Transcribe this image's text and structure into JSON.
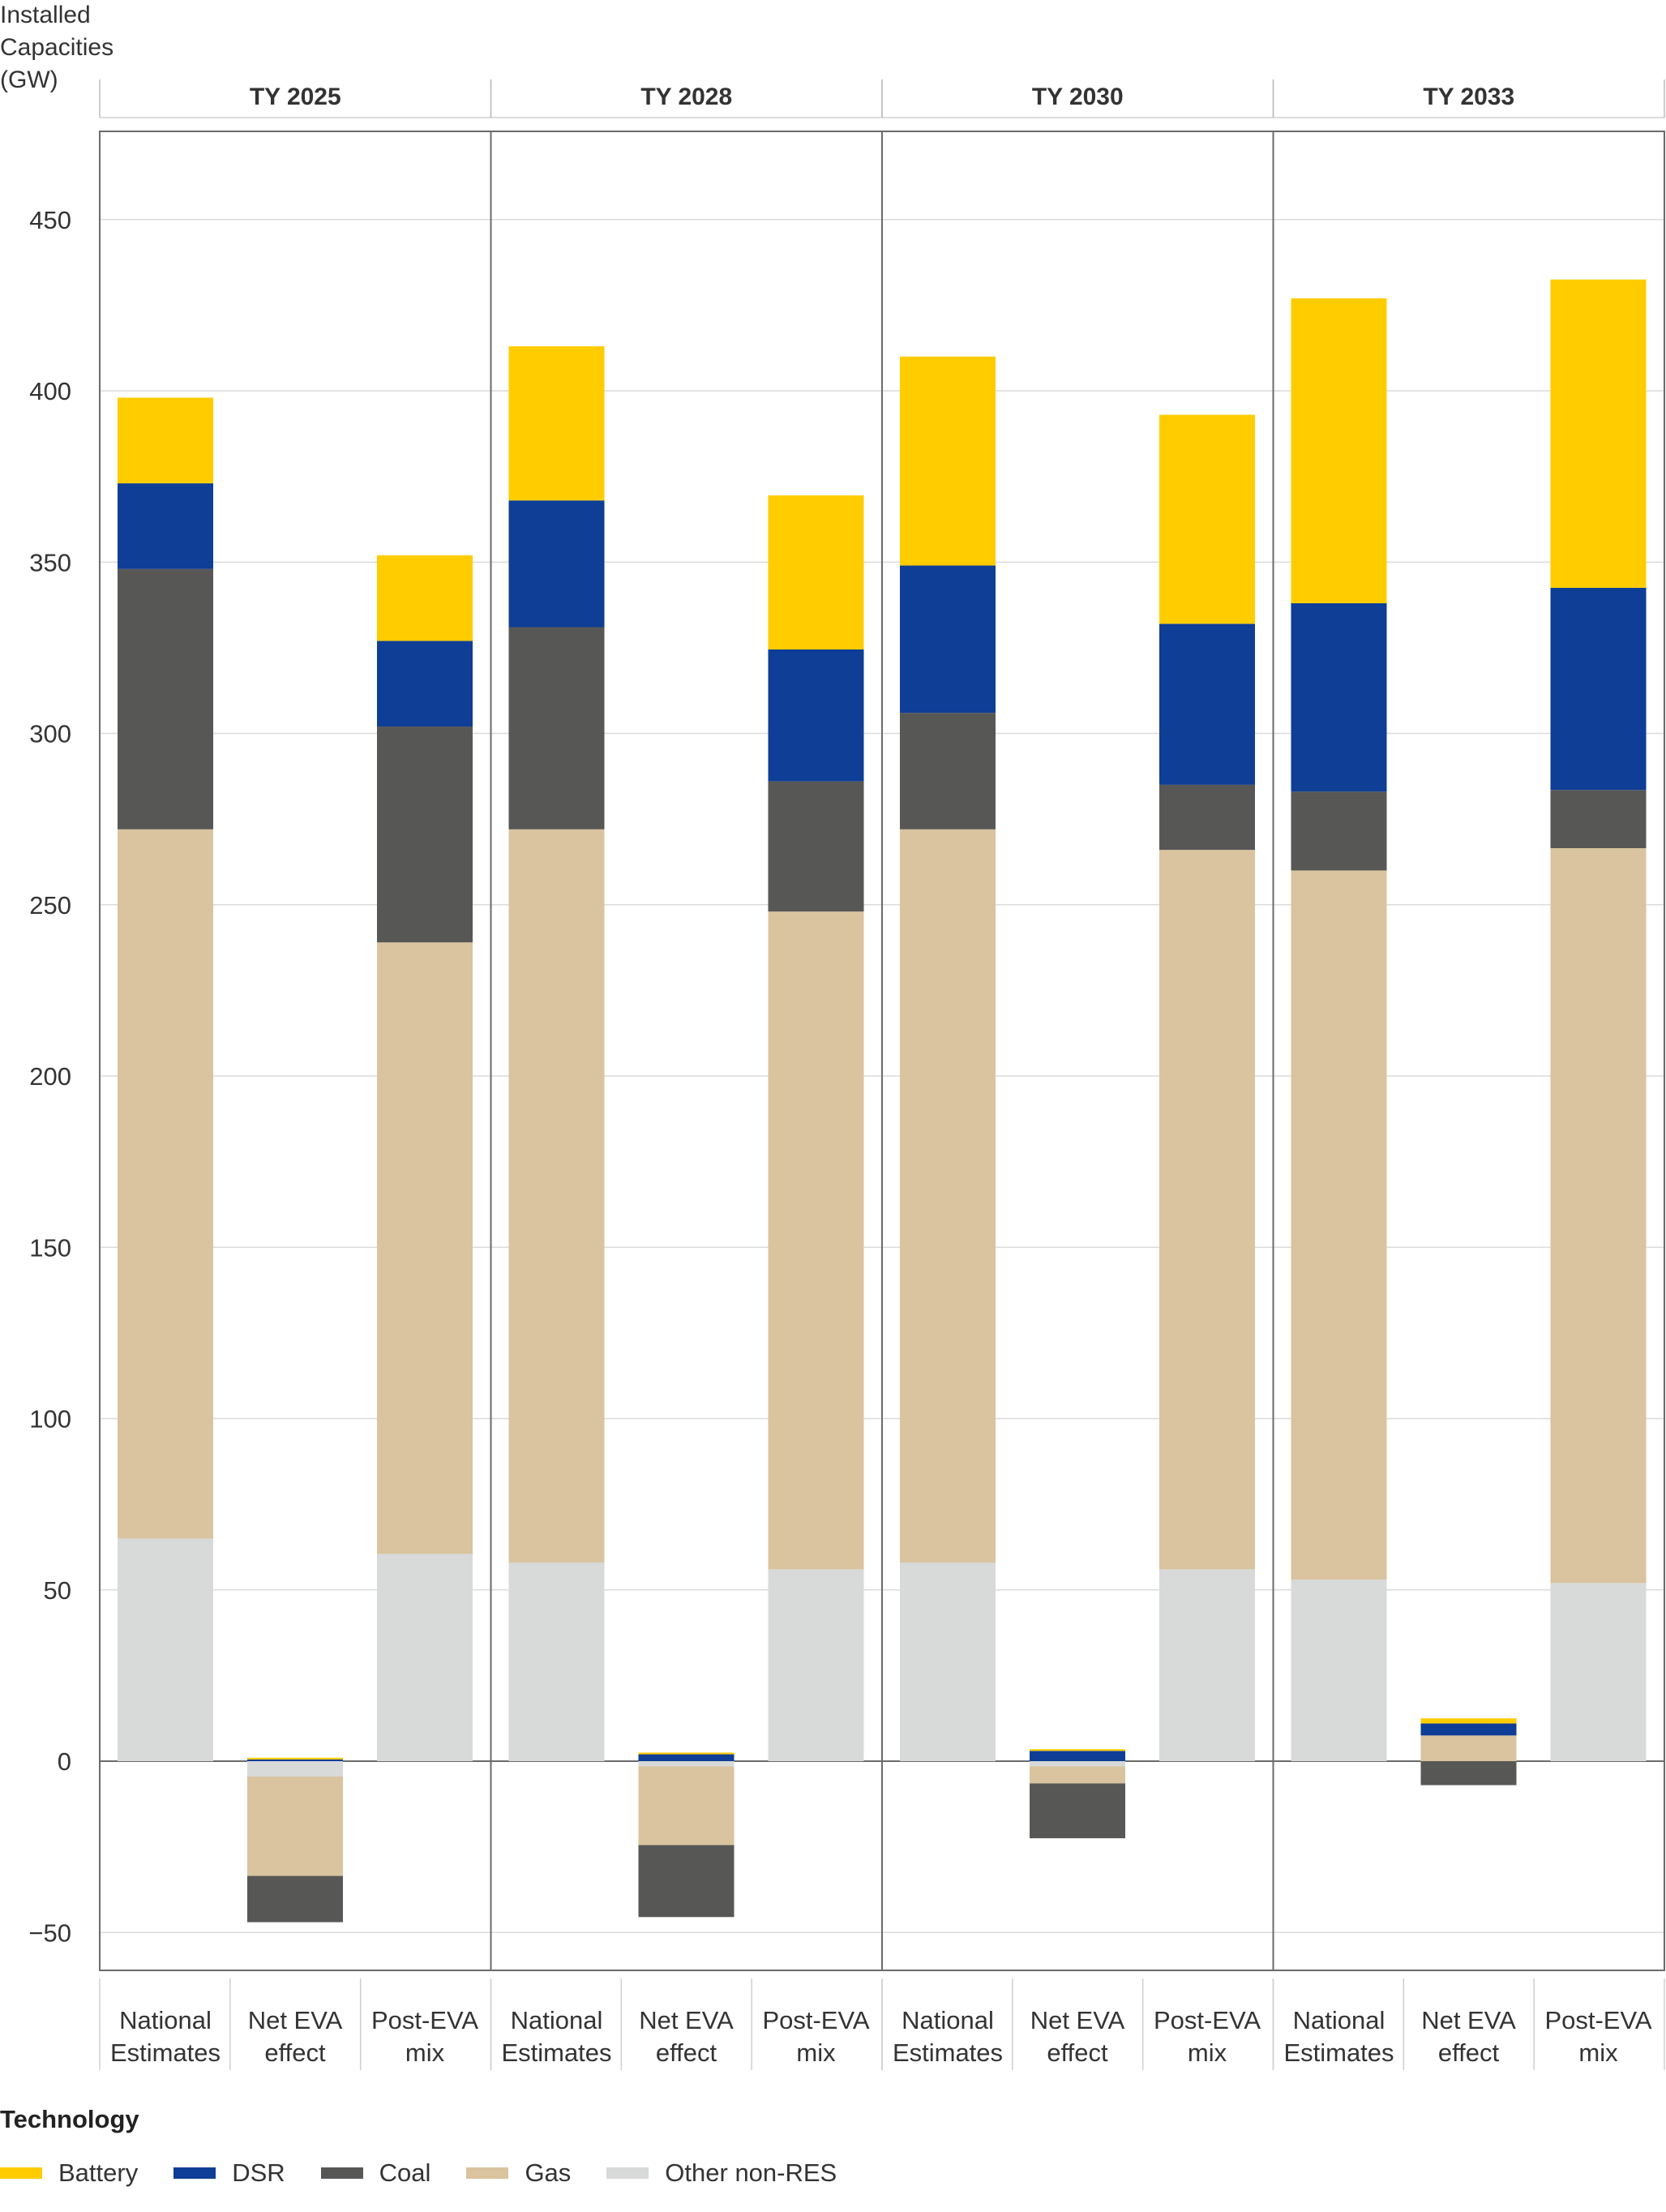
{
  "chart_data": {
    "type": "bar",
    "stacked": true,
    "ylabel": "Installed\nCapacities\n(GW)",
    "ylim": [
      -60,
      480
    ],
    "yticks": [
      -50,
      0,
      50,
      100,
      150,
      200,
      250,
      300,
      350,
      400,
      450
    ],
    "grid": true,
    "legend_title": "Technology",
    "legend_position": "bottom-left",
    "panels": [
      {
        "title": "TY 2025",
        "categories": [
          "National\nEstimates",
          "Net EVA\neffect",
          "Post-EVA\nmix"
        ],
        "series": [
          {
            "name": "Other non-RES",
            "values": [
              65,
              -4.5,
              60.5
            ]
          },
          {
            "name": "Gas",
            "values": [
              207,
              -29,
              178.5
            ]
          },
          {
            "name": "Coal",
            "values": [
              76,
              -13.5,
              63
            ]
          },
          {
            "name": "DSR",
            "values": [
              25,
              0.5,
              25
            ]
          },
          {
            "name": "Battery",
            "values": [
              25,
              0.5,
              25
            ]
          }
        ]
      },
      {
        "title": "TY 2028",
        "categories": [
          "National\nEstimates",
          "Net EVA\neffect",
          "Post-EVA\nmix"
        ],
        "series": [
          {
            "name": "Other non-RES",
            "values": [
              58,
              -1.5,
              56
            ]
          },
          {
            "name": "Gas",
            "values": [
              214,
              -23,
              192
            ]
          },
          {
            "name": "Coal",
            "values": [
              59,
              -21,
              38
            ]
          },
          {
            "name": "DSR",
            "values": [
              37,
              2,
              38.5
            ]
          },
          {
            "name": "Battery",
            "values": [
              45,
              0.5,
              45
            ]
          }
        ]
      },
      {
        "title": "TY 2030",
        "categories": [
          "National\nEstimates",
          "Net EVA\neffect",
          "Post-EVA\nmix"
        ],
        "series": [
          {
            "name": "Other non-RES",
            "values": [
              58,
              -1.5,
              56
            ]
          },
          {
            "name": "Gas",
            "values": [
              214,
              -5,
              210
            ]
          },
          {
            "name": "Coal",
            "values": [
              34,
              -16,
              19
            ]
          },
          {
            "name": "DSR",
            "values": [
              43,
              3,
              47
            ]
          },
          {
            "name": "Battery",
            "values": [
              61,
              0.5,
              61
            ]
          }
        ]
      },
      {
        "title": "TY 2033",
        "categories": [
          "National\nEstimates",
          "Net EVA\neffect",
          "Post-EVA\nmix"
        ],
        "series": [
          {
            "name": "Other non-RES",
            "values": [
              53,
              0,
              52
            ]
          },
          {
            "name": "Gas",
            "values": [
              207,
              7.5,
              214.5
            ]
          },
          {
            "name": "Coal",
            "values": [
              23,
              -7,
              17
            ]
          },
          {
            "name": "DSR",
            "values": [
              55,
              3.5,
              59
            ]
          },
          {
            "name": "Battery",
            "values": [
              89,
              1.5,
              90
            ]
          }
        ]
      }
    ]
  },
  "colors": {
    "Battery": "#FFCC00",
    "DSR": "#0E3E95",
    "Coal": "#575756",
    "Gas": "#D9C49F",
    "Other non-RES": "#D8D9D9"
  },
  "legend": {
    "title": "Technology",
    "items": [
      "Battery",
      "DSR",
      "Coal",
      "Gas",
      "Other non-RES"
    ]
  }
}
